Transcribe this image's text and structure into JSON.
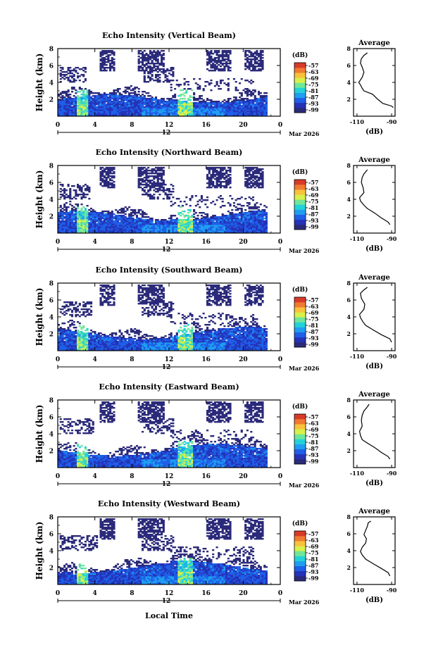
{
  "chart_data": {
    "type": "heatmap",
    "colorbar": {
      "unit": "(dB)",
      "ticks": [
        "-57",
        "-63",
        "-69",
        "-75",
        "-81",
        "-87",
        "-93",
        "-99"
      ],
      "range": [
        -99,
        -57
      ],
      "colors": [
        "#2b2a7a",
        "#2433b8",
        "#1f5fe8",
        "#1f9ef0",
        "#22d2d8",
        "#6fe69a",
        "#d8f04a",
        "#f8c23a",
        "#f07a30",
        "#d83a28"
      ]
    },
    "x_axis": {
      "range": [
        0,
        24
      ],
      "ticks": [
        "0",
        "4",
        "8",
        "12",
        "16",
        "20",
        "0"
      ],
      "date_marker": "12",
      "month": "Mar 2026"
    },
    "y_axis": {
      "label": "Height (km)",
      "range": [
        0,
        8
      ],
      "ticks": [
        "8",
        "6",
        "4",
        "2"
      ]
    },
    "footer_xlabel": "Local Time",
    "average_panel": {
      "title": "Average",
      "xlabel": "(dB)",
      "xticks": [
        "-110",
        "-90"
      ],
      "xrange": [
        -112,
        -88
      ],
      "yticks": [
        "8",
        "6",
        "4",
        "2"
      ]
    },
    "panels": [
      {
        "title": "Echo Intensity (Vertical Beam)",
        "average_profile": [
          [
            1.0,
            -89
          ],
          [
            1.2,
            -90
          ],
          [
            1.5,
            -95
          ],
          [
            2.0,
            -98
          ],
          [
            2.6,
            -101
          ],
          [
            3.0,
            -106
          ],
          [
            3.3,
            -107
          ],
          [
            3.7,
            -108
          ],
          [
            4.0,
            -109
          ],
          [
            4.6,
            -107
          ],
          [
            5.2,
            -106
          ],
          [
            5.8,
            -107
          ],
          [
            6.3,
            -108
          ],
          [
            6.8,
            -107.5
          ],
          [
            7.2,
            -106
          ],
          [
            7.5,
            -104
          ]
        ]
      },
      {
        "title": "Echo Intensity (Northward Beam)",
        "average_profile": [
          [
            1.0,
            -91
          ],
          [
            1.3,
            -92
          ],
          [
            1.8,
            -96
          ],
          [
            2.4,
            -100
          ],
          [
            2.9,
            -104
          ],
          [
            3.3,
            -106
          ],
          [
            3.8,
            -108
          ],
          [
            4.2,
            -108.5
          ],
          [
            4.8,
            -106
          ],
          [
            5.4,
            -106.5
          ],
          [
            6.0,
            -107.5
          ],
          [
            6.6,
            -107
          ],
          [
            7.0,
            -106
          ],
          [
            7.5,
            -104
          ]
        ]
      },
      {
        "title": "Echo Intensity (Southward Beam)",
        "average_profile": [
          [
            1.0,
            -90
          ],
          [
            1.4,
            -91
          ],
          [
            1.9,
            -96
          ],
          [
            2.5,
            -101
          ],
          [
            3.0,
            -105
          ],
          [
            3.4,
            -106.5
          ],
          [
            3.9,
            -108
          ],
          [
            4.3,
            -108.5
          ],
          [
            4.9,
            -106
          ],
          [
            5.5,
            -105.5
          ],
          [
            6.2,
            -107.5
          ],
          [
            6.8,
            -108
          ],
          [
            7.2,
            -106
          ],
          [
            7.5,
            -104
          ]
        ]
      },
      {
        "title": "Echo Intensity (Eastward Beam)",
        "average_profile": [
          [
            1.0,
            -91
          ],
          [
            1.3,
            -92
          ],
          [
            1.8,
            -96
          ],
          [
            2.4,
            -100
          ],
          [
            2.9,
            -104
          ],
          [
            3.3,
            -107
          ],
          [
            3.8,
            -108
          ],
          [
            4.3,
            -108.5
          ],
          [
            4.9,
            -107
          ],
          [
            5.6,
            -107.5
          ],
          [
            6.2,
            -107
          ],
          [
            6.7,
            -106
          ],
          [
            7.2,
            -104
          ],
          [
            7.5,
            -103
          ]
        ]
      },
      {
        "title": "Echo Intensity (Westward Beam)",
        "average_profile": [
          [
            1.0,
            -91
          ],
          [
            1.4,
            -92
          ],
          [
            1.9,
            -96
          ],
          [
            2.5,
            -101
          ],
          [
            3.0,
            -105
          ],
          [
            3.5,
            -107
          ],
          [
            3.9,
            -108
          ],
          [
            4.4,
            -107
          ],
          [
            4.9,
            -105
          ],
          [
            5.4,
            -104.5
          ],
          [
            5.9,
            -106
          ],
          [
            6.4,
            -105
          ],
          [
            6.9,
            -104
          ],
          [
            7.3,
            -103.5
          ],
          [
            7.5,
            -102
          ]
        ]
      }
    ]
  }
}
